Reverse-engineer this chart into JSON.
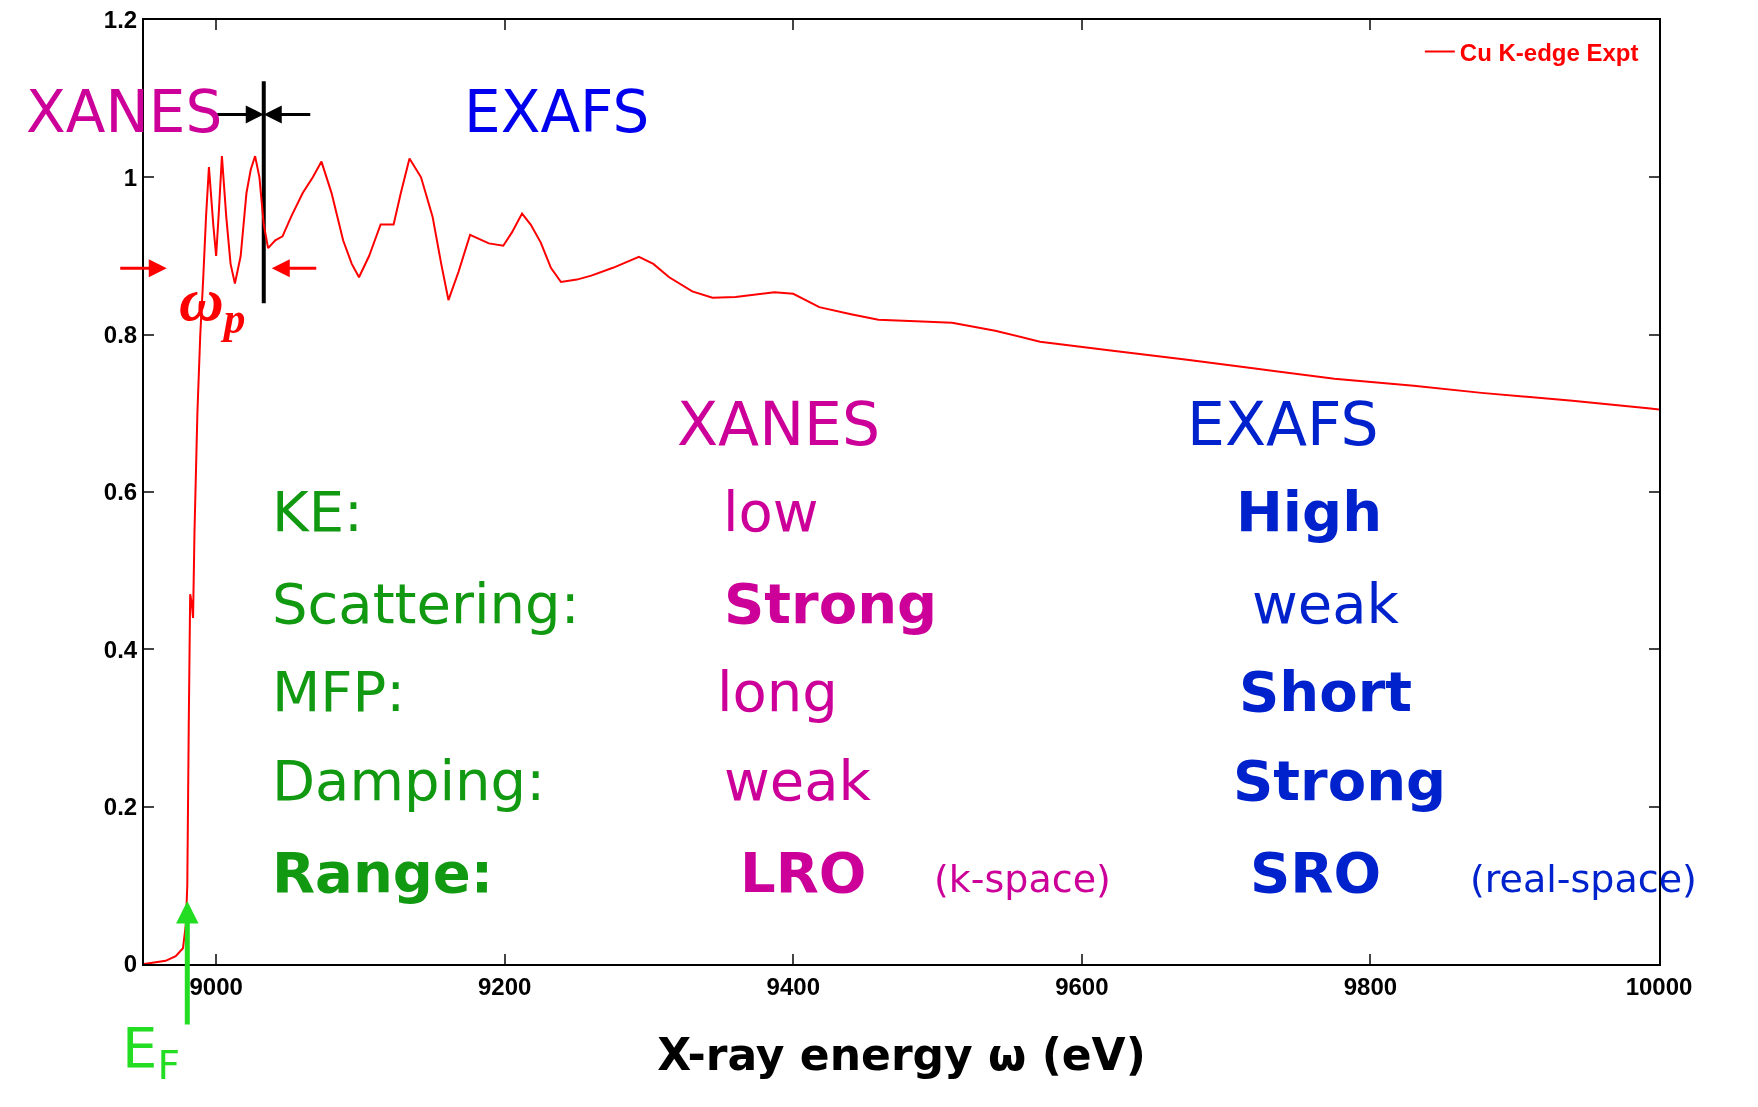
{
  "chart_data": {
    "type": "line",
    "xlabel": "X-ray energy ω (eV)",
    "xlim": [
      8950,
      10000
    ],
    "xticks": [
      9000,
      9200,
      9400,
      9600,
      9800,
      10000
    ],
    "ylim": [
      0,
      1.2
    ],
    "yticks": [
      0,
      0.2,
      0.4,
      0.6,
      0.8,
      1,
      1.2
    ],
    "grid": false,
    "legend": "top right",
    "marker": "none",
    "line_style": "solid",
    "series": [
      {
        "name": "Cu K-edge Expt",
        "color": "#ff0000",
        "x": [
          8950,
          8965,
          8972,
          8977,
          8979,
          8980,
          8981,
          8982,
          8983,
          8984,
          8985,
          8987,
          8989,
          8991,
          8993,
          8995,
          8998,
          9000,
          9002,
          9004,
          9007,
          9010,
          9013,
          9017,
          9021,
          9024,
          9027,
          9030,
          9033,
          9036,
          9041,
          9046,
          9052,
          9060,
          9067,
          9073,
          9080,
          9088,
          9094,
          9099,
          9106,
          9114,
          9123,
          9128,
          9134,
          9142,
          9150,
          9156,
          9161,
          9168,
          9176,
          9189,
          9199,
          9205,
          9212,
          9218,
          9225,
          9232,
          9239,
          9250,
          9260,
          9275,
          9293,
          9303,
          9314,
          9330,
          9344,
          9360,
          9387,
          9400,
          9418,
          9440,
          9459,
          9485,
          9510,
          9540,
          9571,
          9620,
          9673,
          9720,
          9775,
          9830,
          9877,
          9940,
          9994,
          10000
        ],
        "values": [
          0,
          0.004,
          0.01,
          0.02,
          0.05,
          0.1,
          0.3,
          0.47,
          0.46,
          0.44,
          0.55,
          0.7,
          0.8,
          0.87,
          0.95,
          1.013,
          0.94,
          0.9,
          0.96,
          1.027,
          0.95,
          0.89,
          0.865,
          0.9,
          0.98,
          1.01,
          1.027,
          1.0,
          0.94,
          0.91,
          0.92,
          0.925,
          0.95,
          0.98,
          1.0,
          1.02,
          0.98,
          0.92,
          0.89,
          0.873,
          0.9,
          0.94,
          0.94,
          0.98,
          1.024,
          1.0,
          0.95,
          0.89,
          0.844,
          0.88,
          0.927,
          0.916,
          0.913,
          0.93,
          0.954,
          0.94,
          0.917,
          0.885,
          0.867,
          0.87,
          0.875,
          0.885,
          0.899,
          0.89,
          0.873,
          0.855,
          0.847,
          0.848,
          0.854,
          0.852,
          0.835,
          0.826,
          0.819,
          0.817,
          0.815,
          0.805,
          0.791,
          0.78,
          0.768,
          0.757,
          0.744,
          0.735,
          0.726,
          0.716,
          0.706,
          0.705
        ]
      }
    ],
    "ref_lines": [
      {
        "axis": "x",
        "value": 9033,
        "color": "#000000"
      }
    ],
    "annotations": [
      "XANES",
      "EXAFS",
      "ω$_{p}$",
      {
        "text": "E$_{F}$",
        "x": 8980,
        "y": 0.08
      },
      "XANES",
      "EXAFS",
      "KE:",
      "low",
      "High",
      "Scattering:",
      "Strong",
      "weak",
      "MFP:",
      "long",
      "Short",
      "Damping:",
      "weak",
      "Strong",
      "Range:",
      "LRO",
      "(k-space)",
      "SRO",
      "(real-space)"
    ]
  }
}
